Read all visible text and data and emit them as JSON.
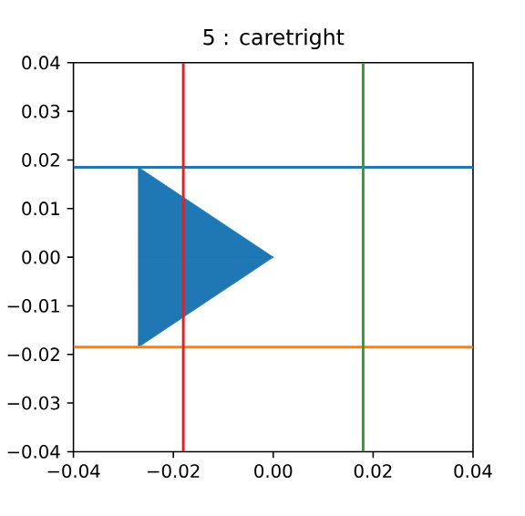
{
  "chart_data": {
    "type": "area",
    "title": "5 : caretright",
    "x": [
      -0.027,
      0.0
    ],
    "series": [
      {
        "color": "#1f77b4",
        "values": [
          0.0185,
          0.0
        ]
      },
      {
        "color": "#1f77b4",
        "values": [
          -0.0185,
          0.0
        ]
      }
    ],
    "xlim": [
      -0.04,
      0.04
    ],
    "ylim": [
      -0.04,
      0.04
    ],
    "xticks": [
      {
        "value": -0.04,
        "label": "−0.04"
      },
      {
        "value": -0.02,
        "label": "−0.02"
      },
      {
        "value": 0.0,
        "label": "0.00"
      },
      {
        "value": 0.02,
        "label": "0.02"
      },
      {
        "value": 0.04,
        "label": "0.04"
      }
    ],
    "yticks": [
      {
        "value": -0.04,
        "label": "−0.04"
      },
      {
        "value": -0.03,
        "label": "−0.03"
      },
      {
        "value": -0.02,
        "label": "−0.02"
      },
      {
        "value": -0.01,
        "label": "−0.01"
      },
      {
        "value": 0.0,
        "label": "0.00"
      },
      {
        "value": 0.01,
        "label": "0.01"
      },
      {
        "value": 0.02,
        "label": "0.02"
      },
      {
        "value": 0.03,
        "label": "0.03"
      },
      {
        "value": 0.04,
        "label": "0.04"
      }
    ],
    "ref_lines": [
      {
        "axis": "y",
        "value": 0.0185,
        "color": "#1f77b4"
      },
      {
        "axis": "y",
        "value": -0.0185,
        "color": "#ff7f0e"
      },
      {
        "axis": "x",
        "value": -0.018,
        "color": "#d62728"
      },
      {
        "axis": "x",
        "value": 0.018,
        "color": "#2ca02c"
      }
    ]
  }
}
